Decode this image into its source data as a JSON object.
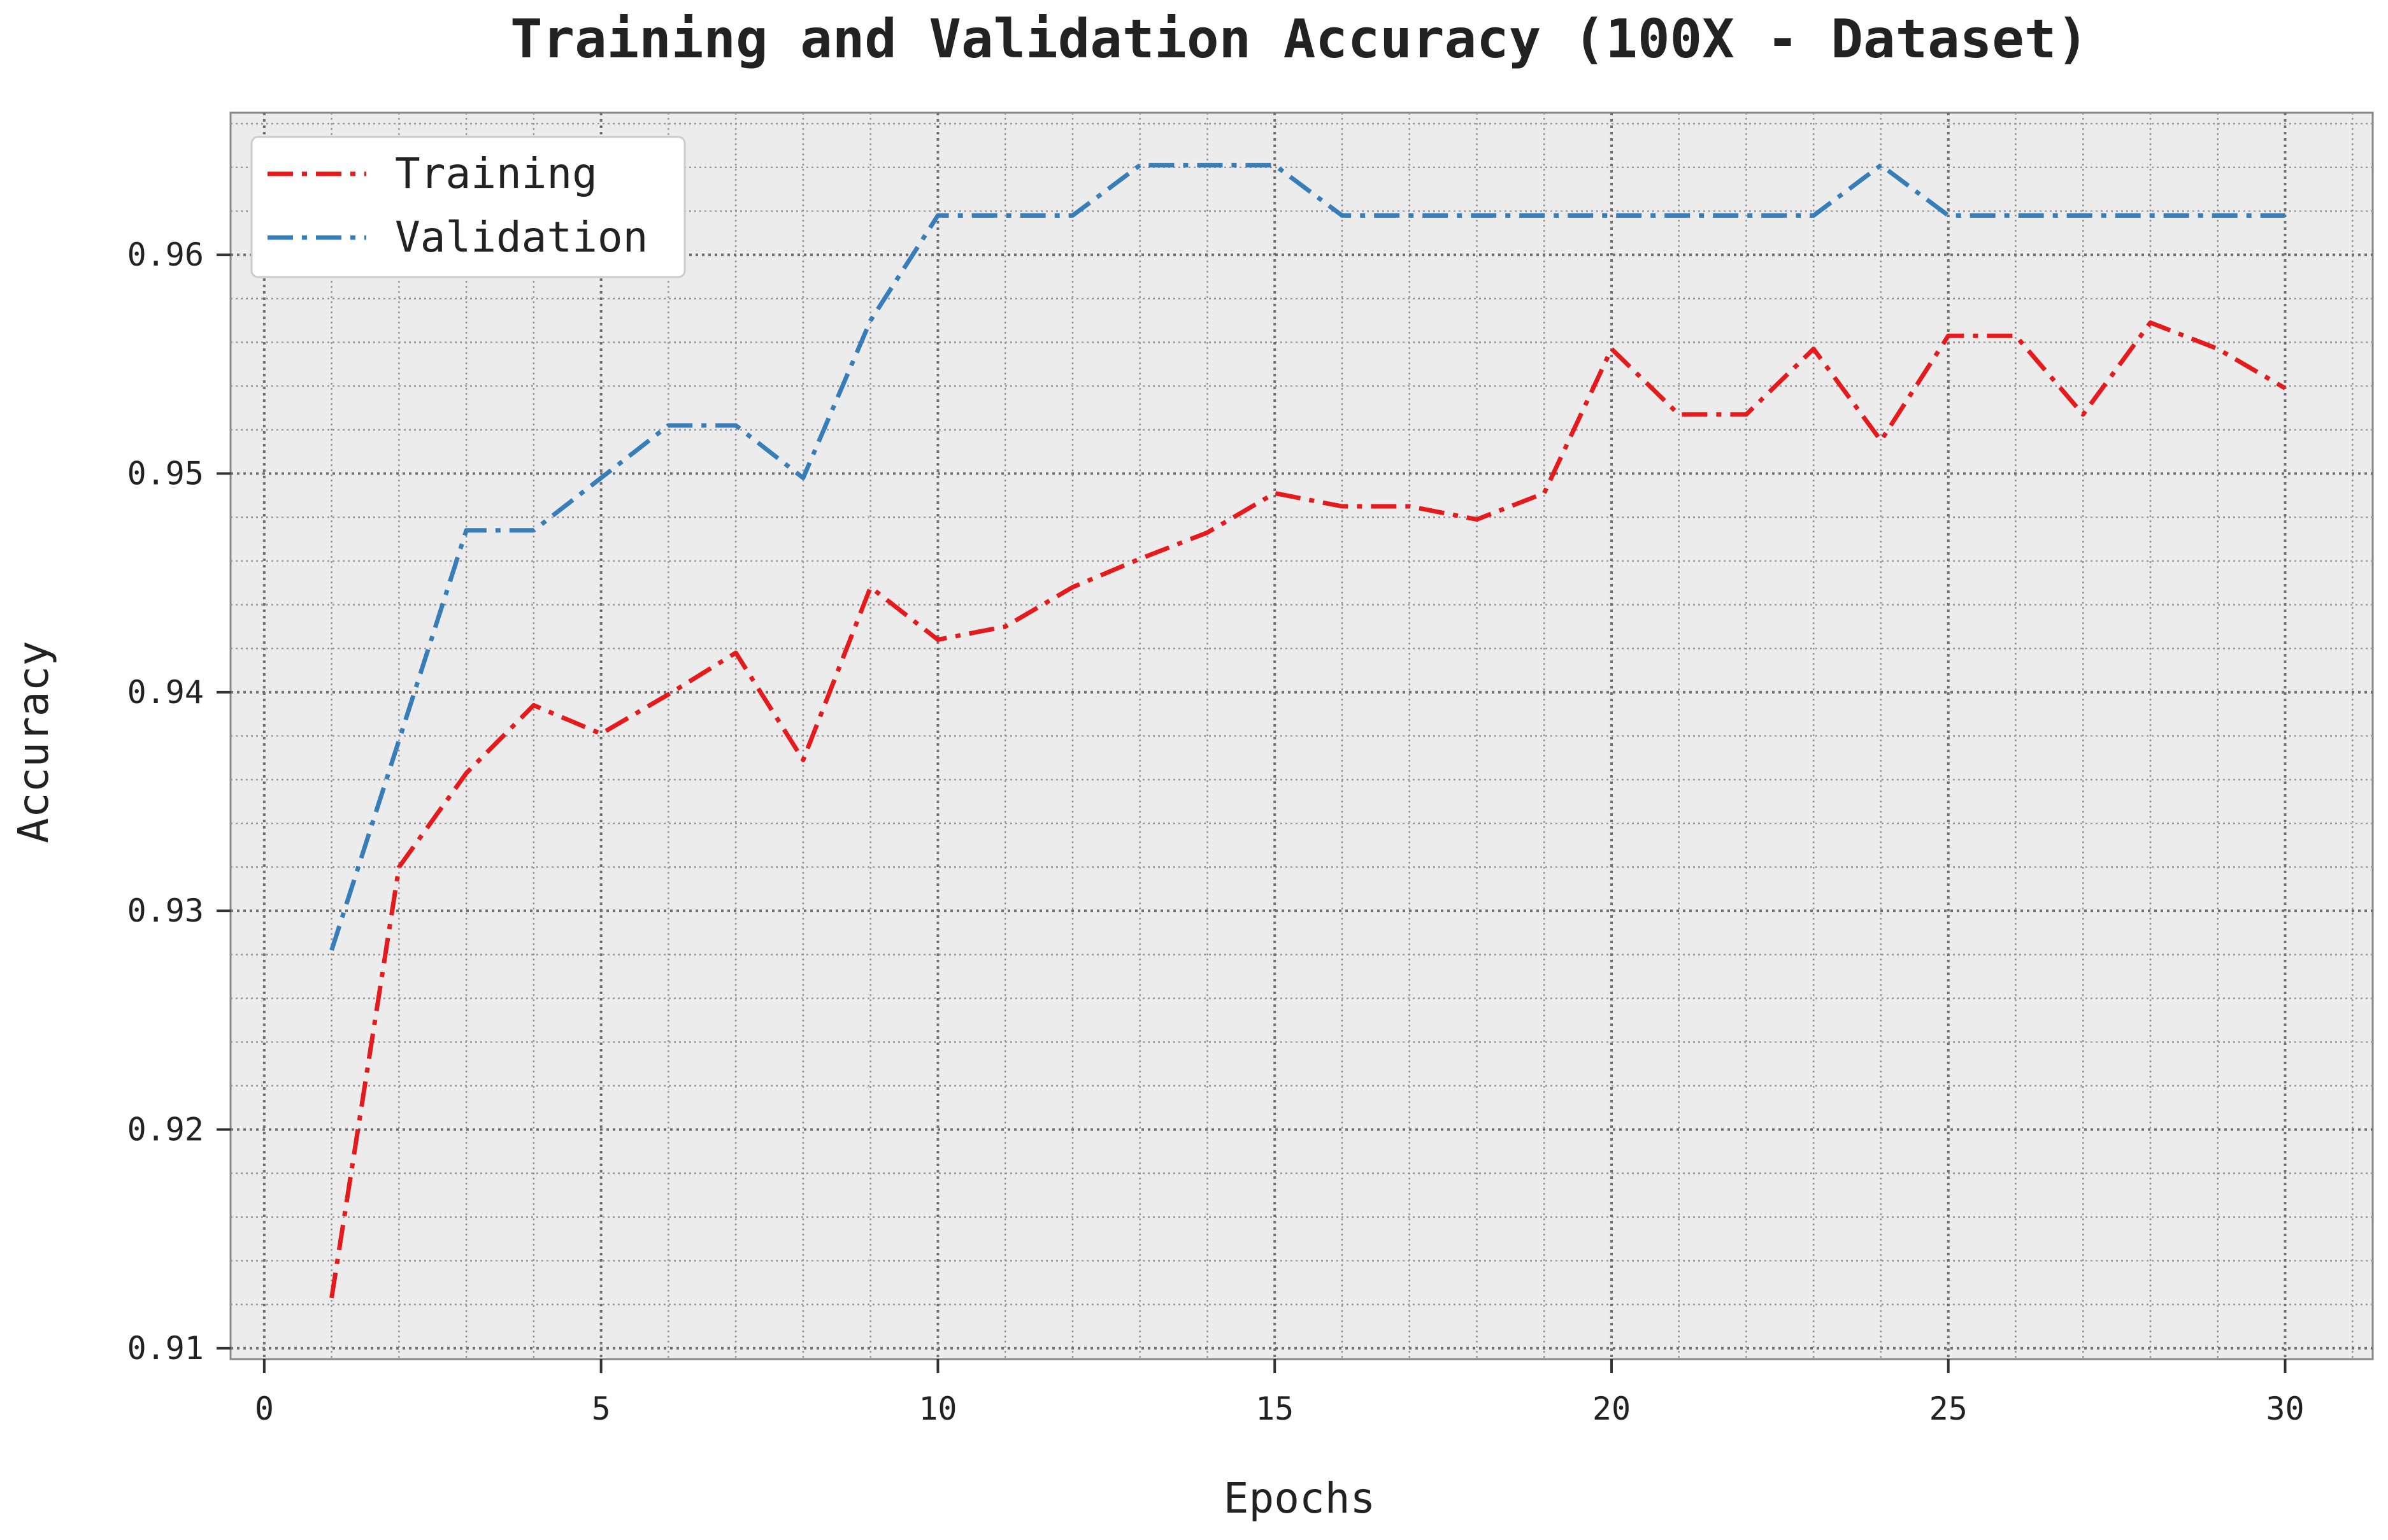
{
  "chart_data": {
    "type": "line",
    "title": "Training and Validation Accuracy (100X - Dataset)",
    "xlabel": "Epochs",
    "ylabel": "Accuracy",
    "xlim": [
      -0.5,
      31.3
    ],
    "ylim": [
      0.9095,
      0.9665
    ],
    "xticks": [
      0,
      5,
      10,
      15,
      20,
      25,
      30
    ],
    "yticks": [
      0.91,
      0.92,
      0.93,
      0.94,
      0.95,
      0.96
    ],
    "xtick_labels": [
      "0",
      "5",
      "10",
      "15",
      "20",
      "25",
      "30"
    ],
    "ytick_labels": [
      "0.91",
      "0.92",
      "0.93",
      "0.94",
      "0.95",
      "0.96"
    ],
    "grid": true,
    "legend_position": "top-left",
    "line_style": "dash-dot",
    "x": [
      1,
      2,
      3,
      4,
      5,
      6,
      7,
      8,
      9,
      10,
      11,
      12,
      13,
      14,
      15,
      16,
      17,
      18,
      19,
      20,
      21,
      22,
      23,
      24,
      25,
      26,
      27,
      28,
      29,
      30
    ],
    "series": [
      {
        "name": "Training",
        "color": "#e41a1c",
        "values": [
          0.9123,
          0.932,
          0.9363,
          0.9394,
          0.9381,
          0.9399,
          0.9418,
          0.9369,
          0.9448,
          0.9424,
          0.943,
          0.9448,
          0.9461,
          0.9473,
          0.9491,
          0.9485,
          0.9485,
          0.9479,
          0.9491,
          0.9557,
          0.9527,
          0.9527,
          0.9557,
          0.9515,
          0.9563,
          0.9563,
          0.9527,
          0.9569,
          0.9557,
          0.9539
        ]
      },
      {
        "name": "Validation",
        "color": "#377eb8",
        "values": [
          0.9282,
          0.9378,
          0.9474,
          0.9474,
          0.9498,
          0.9522,
          0.9522,
          0.9498,
          0.957,
          0.9618,
          0.9618,
          0.9618,
          0.9641,
          0.9641,
          0.9641,
          0.9618,
          0.9618,
          0.9618,
          0.9618,
          0.9618,
          0.9618,
          0.9618,
          0.9618,
          0.9641,
          0.9618,
          0.9618,
          0.9618,
          0.9618,
          0.9618,
          0.9618
        ]
      }
    ]
  }
}
